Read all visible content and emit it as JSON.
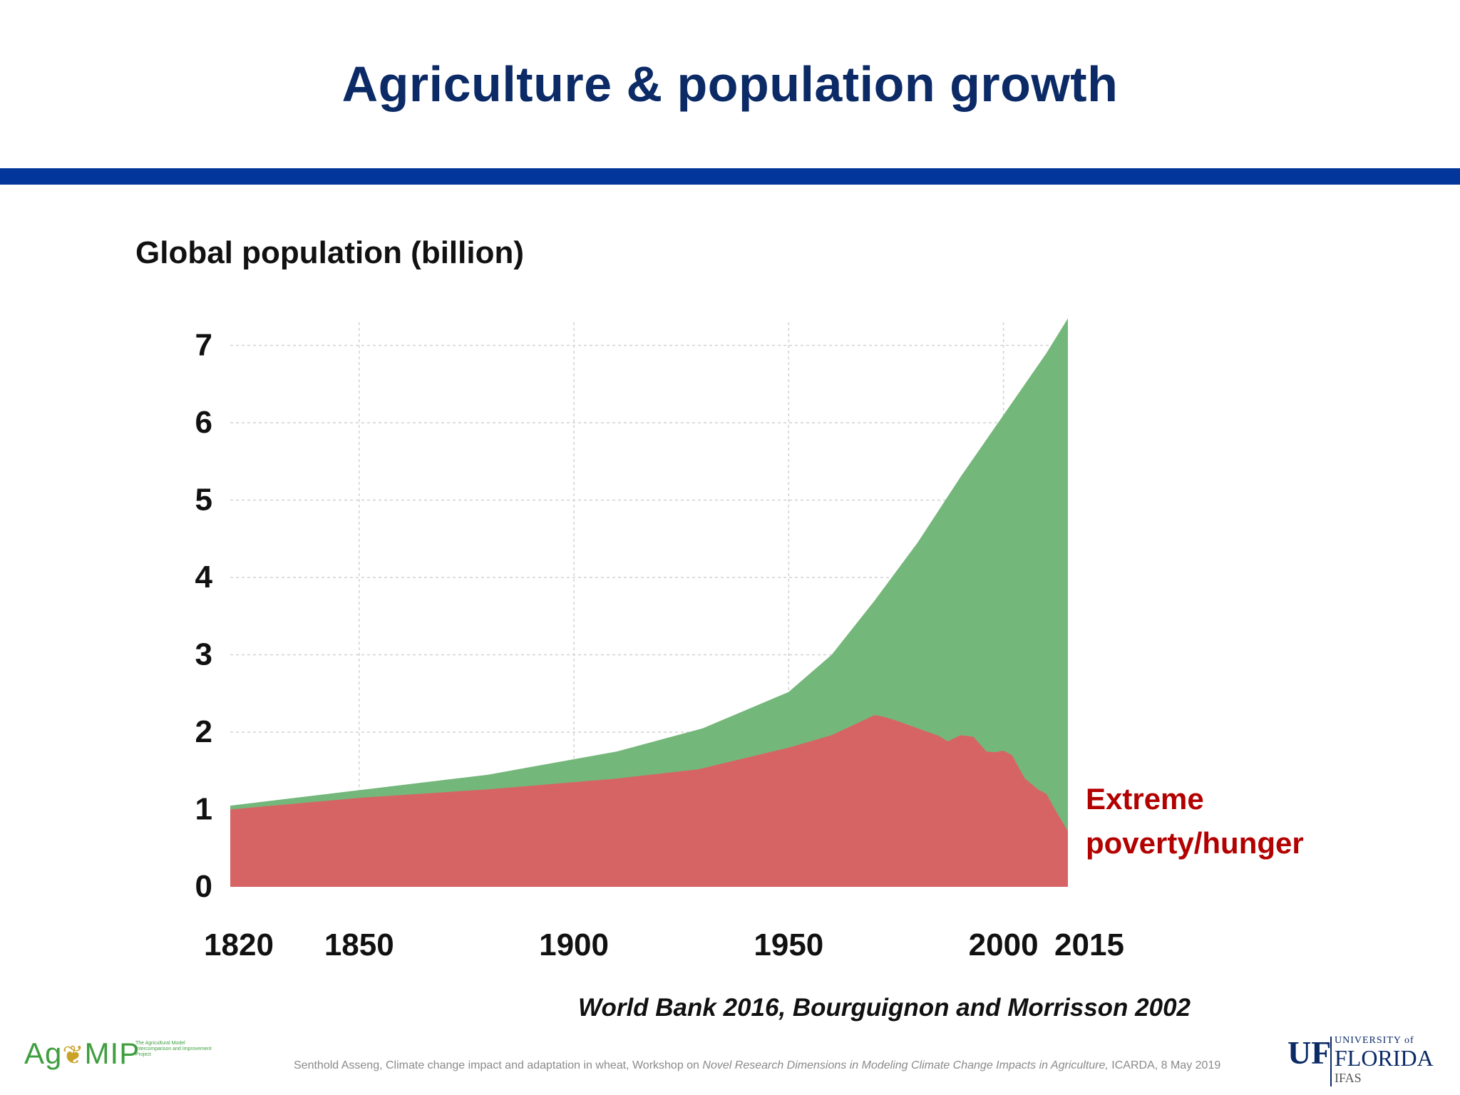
{
  "slide": {
    "title": "Agriculture & population growth",
    "source": "World Bank 2016, Bourguignon and Morrisson 2002",
    "footer": {
      "pre": "Senthold Asseng, Climate change impact and adaptation in wheat, Workshop on ",
      "italic": "Novel Research Dimensions in Modeling Climate Change Impacts in Agriculture,",
      "post": " ICARDA, 8 May 2019"
    },
    "logos": {
      "agmip_word_a": "Ag",
      "agmip_sprig": "❦",
      "agmip_word_b": "MIP",
      "agmip_tagline": "The Agricultural Model Intercomparison and Improvement Project",
      "uf_mark": "UF",
      "uf_university": "UNIVERSITY of",
      "uf_florida": "FLORIDA",
      "uf_ifas": "IFAS"
    }
  },
  "chart_data": {
    "type": "area",
    "ylabel": "Global population (billion)",
    "ylim": [
      0,
      7.3
    ],
    "xlim": [
      1820,
      2015
    ],
    "y_ticks": [
      0,
      1,
      2,
      3,
      4,
      5,
      6,
      7
    ],
    "x_ticks": [
      1820,
      1850,
      1900,
      1950,
      2000,
      2015
    ],
    "grid": true,
    "series": [
      {
        "key": "total",
        "color": "#74b77a",
        "x": [
          1820,
          1850,
          1880,
          1910,
          1930,
          1950,
          1960,
          1970,
          1980,
          1990,
          2000,
          2010,
          2015
        ],
        "y": [
          1.05,
          1.25,
          1.45,
          1.75,
          2.05,
          2.52,
          3.0,
          3.7,
          4.45,
          5.3,
          6.1,
          6.9,
          7.35
        ]
      },
      {
        "key": "extreme_poverty",
        "name": "Extreme poverty/hunger",
        "color": "#d76465",
        "label_color": "#b30000",
        "x": [
          1820,
          1850,
          1880,
          1910,
          1929,
          1950,
          1960,
          1970,
          1972,
          1975,
          1980,
          1985,
          1987,
          1990,
          1993,
          1996,
          1998,
          2000,
          2002,
          2005,
          2008,
          2010,
          2012,
          2015
        ],
        "y": [
          1.0,
          1.15,
          1.26,
          1.4,
          1.52,
          1.8,
          1.96,
          2.22,
          2.2,
          2.15,
          2.05,
          1.95,
          1.88,
          1.96,
          1.94,
          1.75,
          1.74,
          1.76,
          1.7,
          1.4,
          1.26,
          1.2,
          1.0,
          0.72
        ]
      }
    ]
  }
}
